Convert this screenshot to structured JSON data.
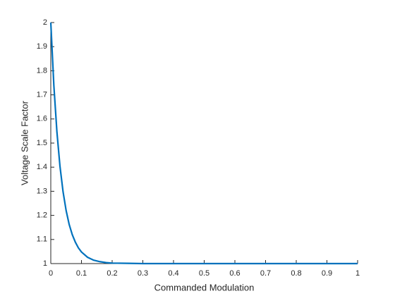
{
  "chart_data": {
    "type": "line",
    "x_label": "Commanded Modulation",
    "y_label": "Voltage Scale Factor",
    "x": [
      0,
      0.01,
      0.02,
      0.03,
      0.04,
      0.05,
      0.06,
      0.07,
      0.08,
      0.09,
      0.1,
      0.12,
      0.14,
      0.16,
      0.18,
      0.2,
      0.25,
      0.3,
      0.5,
      1
    ],
    "series": [
      {
        "color": "#0072bd",
        "values": [
          2,
          1.739,
          1.546,
          1.403,
          1.298,
          1.22,
          1.162,
          1.12,
          1.089,
          1.065,
          1.048,
          1.026,
          1.014,
          1.008,
          1.004,
          1.002,
          1.001,
          1,
          1,
          1
        ]
      }
    ],
    "xlim": [
      0,
      1
    ],
    "xticks": [
      0,
      0.1,
      0.2,
      0.3,
      0.4,
      0.5,
      0.6,
      0.7,
      0.8,
      0.9,
      1
    ],
    "ylim": [
      1,
      2
    ],
    "yticks": [
      1,
      1.1,
      1.2,
      1.3,
      1.4,
      1.5,
      1.6,
      1.7,
      1.8,
      1.9,
      2
    ],
    "grid": false
  }
}
